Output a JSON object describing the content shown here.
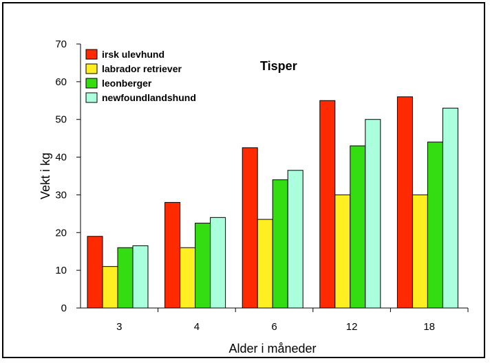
{
  "chart_data": {
    "type": "bar",
    "title": "Tisper",
    "xlabel": "Alder i måneder",
    "ylabel": "Vekt i kg",
    "categories": [
      "3",
      "4",
      "6",
      "12",
      "18"
    ],
    "ylim": [
      0,
      70
    ],
    "yticks": [
      0,
      10,
      20,
      30,
      40,
      50,
      60,
      70
    ],
    "grid": false,
    "legend_position": "top-left",
    "series": [
      {
        "name": "irsk ulevhund",
        "color": "#ff2a00",
        "values": [
          19,
          28,
          42.5,
          55,
          56
        ]
      },
      {
        "name": "labrador retriever",
        "color": "#ffee22",
        "values": [
          11,
          16,
          23.5,
          30,
          30
        ]
      },
      {
        "name": "leonberger",
        "color": "#33dd11",
        "values": [
          16,
          22.5,
          34,
          43,
          44
        ]
      },
      {
        "name": "newfoundlandshund",
        "color": "#aaffdd",
        "values": [
          16.5,
          24,
          36.5,
          50,
          53
        ]
      }
    ]
  }
}
